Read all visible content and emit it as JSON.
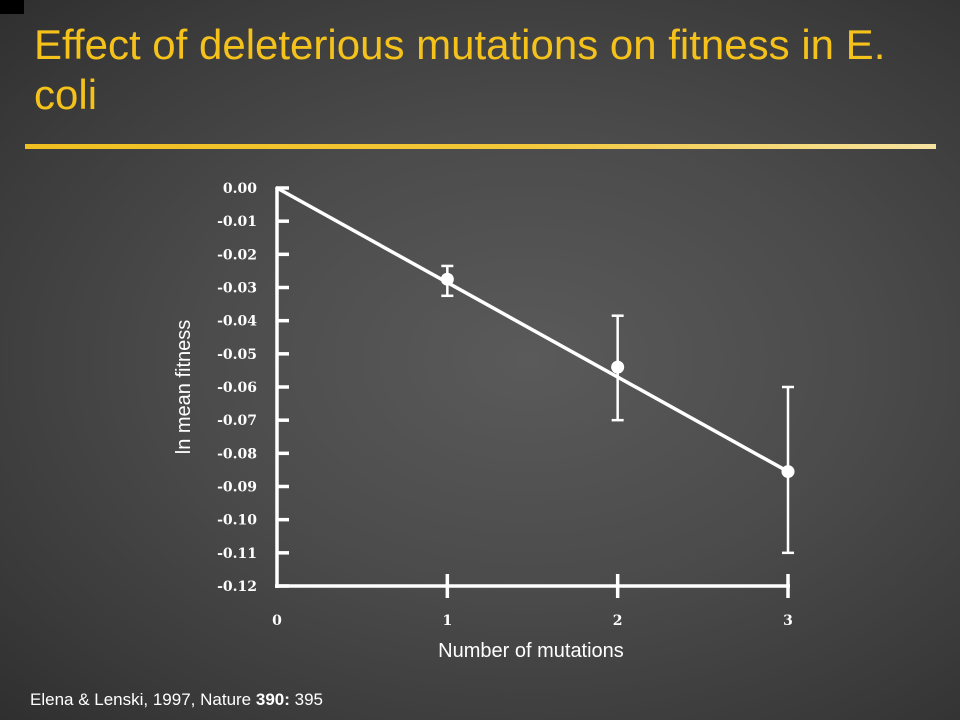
{
  "slide": {
    "title": "Effect of deleterious mutations on fitness in E. coli",
    "citation_prefix": "Elena & Lenski, 1997, Nature ",
    "citation_volume": "390:",
    "citation_suffix": " 395"
  },
  "colors": {
    "title": "#f5c21b",
    "background": "#4b4b4b",
    "plot": "#ffffff"
  },
  "chart_data": {
    "type": "line",
    "title": "",
    "xlabel": "Number of mutations",
    "ylabel": "ln mean fitness",
    "xlim": [
      0,
      3
    ],
    "ylim": [
      -0.12,
      0.0
    ],
    "x_ticks": [
      0,
      1,
      2,
      3
    ],
    "x_tick_labels": [
      "0",
      "1",
      "2",
      "3"
    ],
    "y_ticks": [
      0.0,
      -0.01,
      -0.02,
      -0.03,
      -0.04,
      -0.05,
      -0.06,
      -0.07,
      -0.08,
      -0.09,
      -0.1,
      -0.11,
      -0.12
    ],
    "y_tick_labels": [
      "0.00",
      "-0.01",
      "-0.02",
      "-0.03",
      "-0.04",
      "-0.05",
      "-0.06",
      "-0.07",
      "-0.08",
      "-0.09",
      "-0.10",
      "-0.11",
      "-0.12"
    ],
    "fit_line": {
      "x": [
        0,
        3
      ],
      "y": [
        0.0,
        -0.0855
      ]
    },
    "points": [
      {
        "x": 1,
        "y": -0.0275,
        "err_low": -0.0325,
        "err_high": -0.0235
      },
      {
        "x": 2,
        "y": -0.054,
        "err_low": -0.07,
        "err_high": -0.0385
      },
      {
        "x": 3,
        "y": -0.0855,
        "err_low": -0.11,
        "err_high": -0.06
      }
    ],
    "grid": false,
    "legend": "none"
  }
}
